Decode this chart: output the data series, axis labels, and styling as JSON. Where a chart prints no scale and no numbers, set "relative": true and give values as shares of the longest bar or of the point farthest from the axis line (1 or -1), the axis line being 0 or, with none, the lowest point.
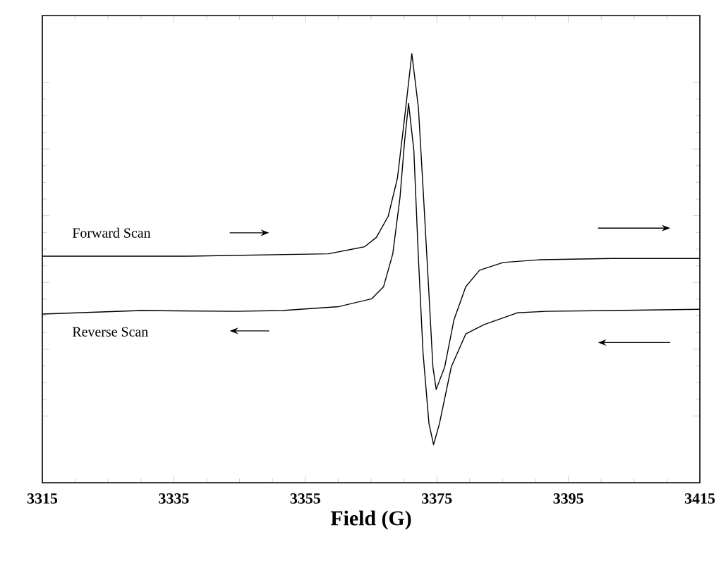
{
  "chart_data": {
    "type": "line",
    "xlabel": "Field (G)",
    "relative": true,
    "tick_labels": "x",
    "xlim": [
      3315,
      3415
    ],
    "xticks": [
      3315,
      3335,
      3355,
      3375,
      3395,
      3415
    ],
    "line_style": "solid",
    "marker": "none",
    "legend": false,
    "series": [
      {
        "name": "Forward Scan",
        "color": "#000000",
        "x": [
          3315,
          3337.2,
          3358.5,
          3364.0,
          3365.8,
          3367.6,
          3369.0,
          3370.1,
          3371.2,
          3372.2,
          3372.9,
          3373.7,
          3374.4,
          3374.9,
          3376.2,
          3377.6,
          3379.4,
          3381.5,
          3385.1,
          3390.8,
          3401.6,
          3415
        ],
        "values": [
          0.482,
          0.482,
          0.488,
          0.506,
          0.53,
          0.584,
          0.681,
          0.837,
          1.0,
          0.861,
          0.657,
          0.416,
          0.199,
          0.141,
          0.199,
          0.319,
          0.404,
          0.446,
          0.466,
          0.473,
          0.476,
          0.476
        ]
      },
      {
        "name": "Reverse Scan",
        "color": "#000000",
        "x": [
          3315,
          3330.0,
          3344.3,
          3351.5,
          3360.1,
          3365.1,
          3366.9,
          3368.3,
          3369.4,
          3370.1,
          3370.7,
          3371.5,
          3372.2,
          3372.9,
          3373.8,
          3374.5,
          3375.4,
          3377.2,
          3379.4,
          3382.2,
          3387.2,
          3391.5,
          3401.6,
          3415
        ],
        "values": [
          0.334,
          0.343,
          0.341,
          0.343,
          0.353,
          0.373,
          0.404,
          0.488,
          0.633,
          0.777,
          0.873,
          0.753,
          0.476,
          0.235,
          0.054,
          0.0,
          0.054,
          0.199,
          0.283,
          0.307,
          0.337,
          0.341,
          0.343,
          0.346
        ]
      }
    ]
  }
}
